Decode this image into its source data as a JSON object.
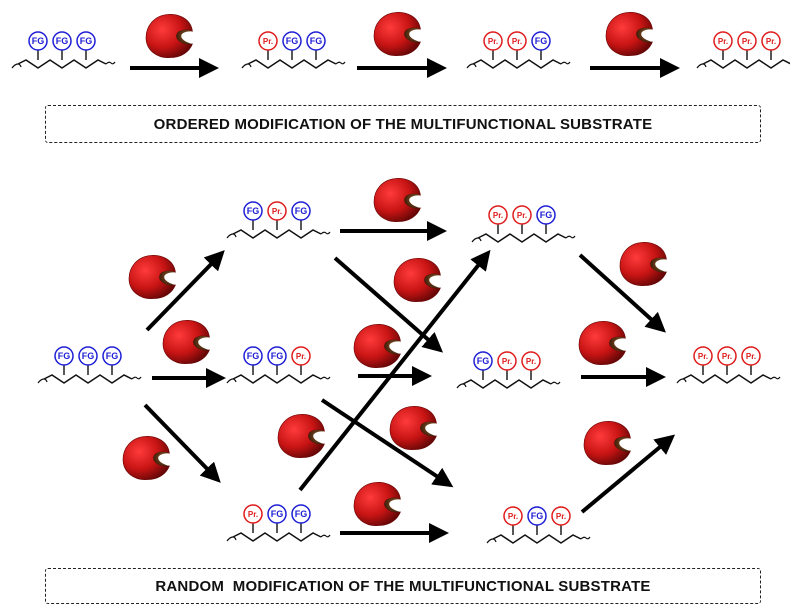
{
  "labels": {
    "functional_group": "FG",
    "product_group": "Pr."
  },
  "banners": {
    "ordered": "ORDERED MODIFICATION OF THE MULTIFUNCTIONAL SUBSTRATE",
    "random": "RANDOM  MODIFICATION OF THE MULTIFUNCTIONAL SUBSTRATE"
  },
  "colors": {
    "functional_group": "#1f1fd6",
    "product_group": "#e01b1b",
    "enzyme": "#b30f0f",
    "arrow": "#000000",
    "backbone": "#111111"
  },
  "icons": {
    "enzyme": "enzyme-pacman-icon"
  },
  "ordered_sequence": [
    [
      "FG",
      "FG",
      "FG"
    ],
    [
      "Pr.",
      "FG",
      "FG"
    ],
    [
      "Pr.",
      "Pr.",
      "FG"
    ],
    [
      "Pr.",
      "Pr.",
      "Pr."
    ]
  ],
  "random_network": {
    "nodes": [
      {
        "id": "s0",
        "groups": [
          "FG",
          "FG",
          "FG"
        ]
      },
      {
        "id": "a1",
        "groups": [
          "FG",
          "Pr.",
          "FG"
        ]
      },
      {
        "id": "a2",
        "groups": [
          "FG",
          "FG",
          "Pr."
        ]
      },
      {
        "id": "a3",
        "groups": [
          "Pr.",
          "FG",
          "FG"
        ]
      },
      {
        "id": "b1",
        "groups": [
          "Pr.",
          "Pr.",
          "FG"
        ]
      },
      {
        "id": "b2",
        "groups": [
          "FG",
          "Pr.",
          "Pr."
        ]
      },
      {
        "id": "b3",
        "groups": [
          "Pr.",
          "FG",
          "Pr."
        ]
      },
      {
        "id": "c",
        "groups": [
          "Pr.",
          "Pr.",
          "Pr."
        ]
      }
    ],
    "edges": [
      [
        "s0",
        "a1"
      ],
      [
        "s0",
        "a2"
      ],
      [
        "s0",
        "a3"
      ],
      [
        "a1",
        "b1"
      ],
      [
        "a1",
        "b2"
      ],
      [
        "a2",
        "b2"
      ],
      [
        "a2",
        "b3"
      ],
      [
        "a3",
        "b1"
      ],
      [
        "a3",
        "b3"
      ],
      [
        "b1",
        "c"
      ],
      [
        "b2",
        "c"
      ],
      [
        "b3",
        "c"
      ]
    ]
  }
}
